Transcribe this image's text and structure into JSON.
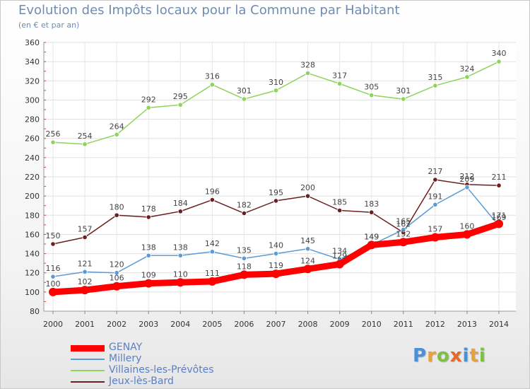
{
  "title": "Evolution des Impôts locaux pour la Commune par Habitant",
  "subtitle": "(en € et par an)",
  "logo": {
    "letters": [
      "P",
      "r",
      "o",
      "x",
      "i",
      "t",
      "i"
    ],
    "colors": [
      "#4a8fd9",
      "#e8a23b",
      "#7cc144",
      "#e36a2a",
      "#4a8fd9",
      "#e8a23b",
      "#7cc144"
    ]
  },
  "chart_data": {
    "type": "line",
    "title": "Evolution des Impôts locaux pour la Commune par Habitant",
    "subtitle": "(en € et par an)",
    "x": [
      "2000",
      "2001",
      "2002",
      "2003",
      "2004",
      "2005",
      "2006",
      "2007",
      "2008",
      "2009",
      "2010",
      "2011",
      "2012",
      "2013",
      "2014"
    ],
    "ylim": [
      80,
      360
    ],
    "yticks": [
      "80",
      "100",
      "120",
      "140",
      "160",
      "180",
      "200",
      "220",
      "240",
      "260",
      "280",
      "300",
      "320",
      "340",
      "360"
    ],
    "grid": true,
    "legend_position": "bottom-left",
    "series": [
      {
        "name": "GENAY",
        "color": "#ff0000",
        "values": [
          100,
          102,
          106,
          109,
          110,
          111,
          118,
          119,
          124,
          129,
          149,
          152,
          157,
          160,
          171
        ]
      },
      {
        "name": "Millery",
        "color": "#5b9bd5",
        "values": [
          116,
          121,
          120,
          138,
          138,
          142,
          135,
          140,
          145,
          134,
          149,
          165,
          191,
          209,
          169
        ]
      },
      {
        "name": "Villaines-les-Prévôtes",
        "color": "#8ed35a",
        "values": [
          256,
          254,
          264,
          292,
          295,
          316,
          301,
          310,
          328,
          317,
          305,
          301,
          315,
          324,
          340
        ]
      },
      {
        "name": "Jeux-lès-Bard",
        "color": "#6b1f1f",
        "values": [
          150,
          157,
          180,
          178,
          184,
          196,
          182,
          195,
          200,
          185,
          183,
          162,
          217,
          212,
          211
        ]
      }
    ]
  }
}
